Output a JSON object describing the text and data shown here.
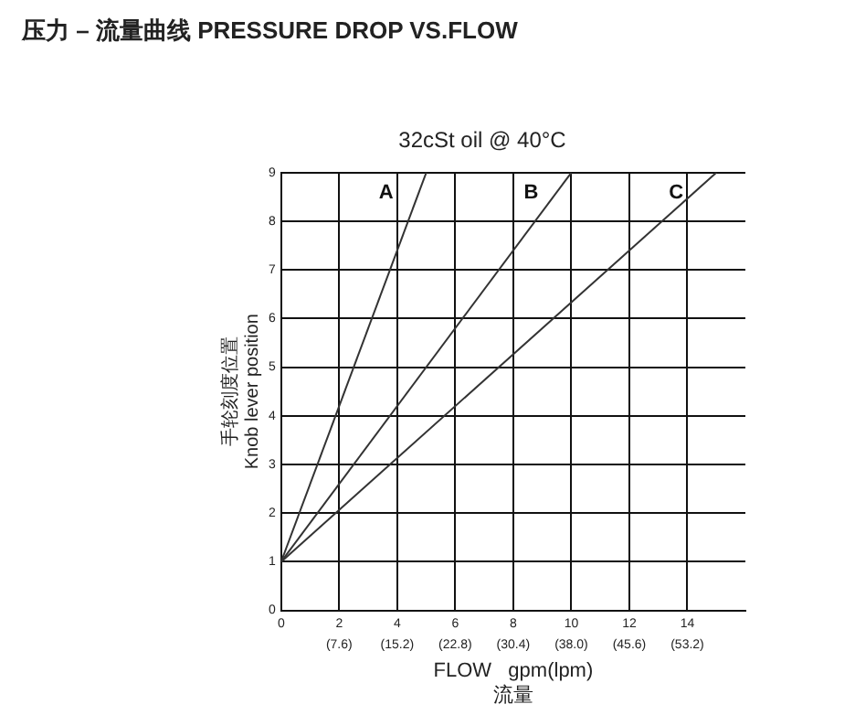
{
  "chart_data": {
    "type": "line",
    "title": "压力 – 流量曲线 PRESSURE DROP VS.FLOW",
    "subtitle": "32cSt oil @ 40°C",
    "xlabel": "FLOW   gpm(lpm)\n流量",
    "ylabel": "手轮刻度位置\nKnob lever position",
    "series": [
      {
        "name": "A",
        "color": "#333333",
        "x": [
          0,
          5
        ],
        "values": [
          1,
          9
        ]
      },
      {
        "name": "B",
        "color": "#333333",
        "x": [
          0,
          10
        ],
        "values": [
          1,
          9
        ]
      },
      {
        "name": "C",
        "color": "#333333",
        "x": [
          0,
          15
        ],
        "values": [
          1,
          9
        ]
      }
    ],
    "xlim": [
      0,
      16
    ],
    "xticks": [
      0,
      2,
      4,
      6,
      8,
      10,
      12,
      14
    ],
    "x2lim": [
      0,
      60.8
    ],
    "x2ticks": [
      {
        "value": 7.6,
        "label": "(7.6)"
      },
      {
        "value": 15.2,
        "label": "(15.2)"
      },
      {
        "value": 22.8,
        "label": "(22.8)"
      },
      {
        "value": 30.4,
        "label": "(30.4)"
      },
      {
        "value": 38.0,
        "label": "(38.0)"
      },
      {
        "value": 45.6,
        "label": "(45.6)"
      },
      {
        "value": 53.2,
        "label": "(53.2)"
      }
    ],
    "ylim": [
      0,
      9
    ],
    "yticks": [
      0,
      1,
      2,
      3,
      4,
      5,
      6,
      7,
      8,
      9
    ],
    "grid": true,
    "legend": false,
    "marker": "none",
    "line_style": "solid"
  }
}
